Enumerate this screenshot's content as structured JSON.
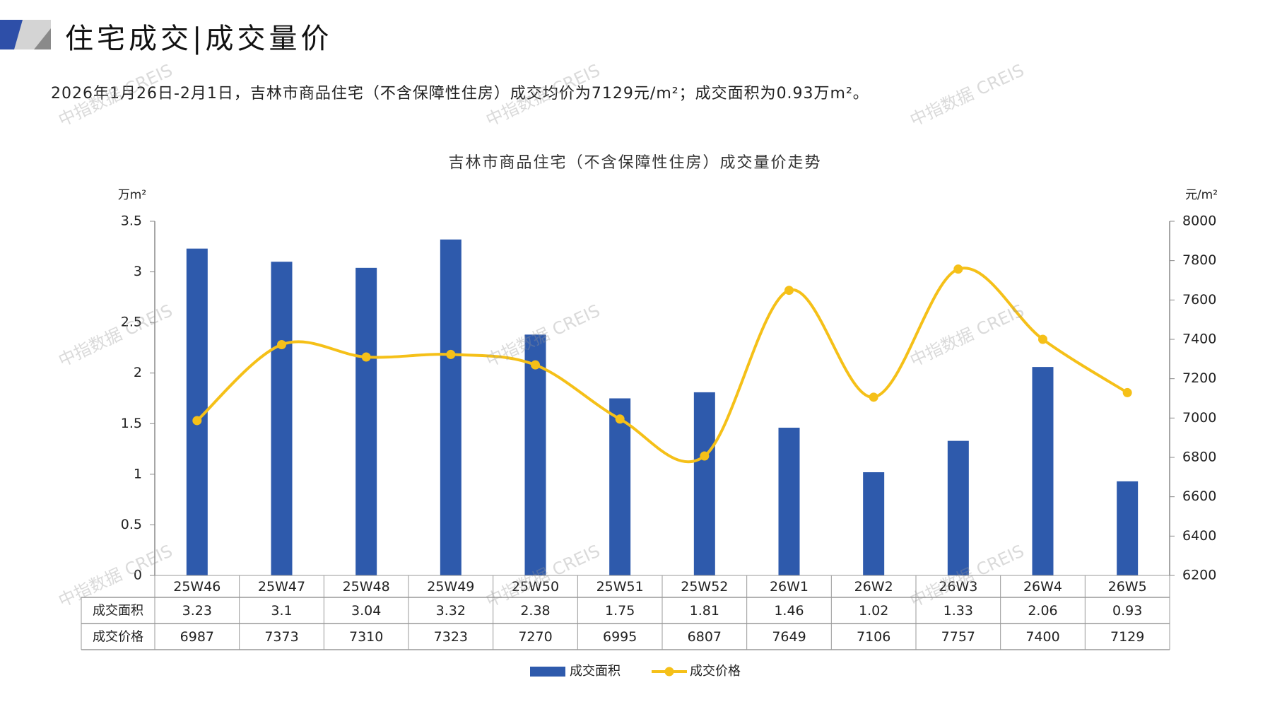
{
  "header": {
    "title": "住宅成交|成交量价"
  },
  "summary": "2026年1月26日-2月1日，吉林市商品住宅（不含保障性住房）成交均价为7129元/m²；成交面积为0.93万m²。",
  "watermark": "中指数据 CREIS",
  "colors": {
    "bar": "#2E5AAC",
    "line": "#F5C018",
    "accent": "#2E4FA8"
  },
  "chart_data": {
    "type": "bar+line",
    "title": "吉林市商品住宅（不含保障性住房）成交量价走势",
    "categories": [
      "25W46",
      "25W47",
      "25W48",
      "25W49",
      "25W50",
      "25W51",
      "25W52",
      "26W1",
      "26W2",
      "26W3",
      "26W4",
      "26W5"
    ],
    "y_left": {
      "unit": "万m²",
      "range": [
        0,
        3.5
      ],
      "ticks": [
        "0",
        "0.5",
        "1",
        "1.5",
        "2",
        "2.5",
        "3",
        "3.5"
      ]
    },
    "y_right": {
      "unit": "元/m²",
      "range": [
        6200,
        8000
      ],
      "ticks": [
        "6200",
        "6400",
        "6600",
        "6800",
        "7000",
        "7200",
        "7400",
        "7600",
        "7800",
        "8000"
      ]
    },
    "series": [
      {
        "name": "成交面积",
        "type": "bar",
        "axis": "left",
        "values": [
          3.23,
          3.1,
          3.04,
          3.32,
          2.38,
          1.75,
          1.81,
          1.46,
          1.02,
          1.33,
          2.06,
          0.93
        ]
      },
      {
        "name": "成交价格",
        "type": "line",
        "axis": "right",
        "smooth": true,
        "values": [
          6987,
          7373,
          7310,
          7323,
          7270,
          6995,
          6807,
          7649,
          7106,
          7757,
          7400,
          7129
        ]
      }
    ],
    "data_table": true,
    "grid": false,
    "legend": "bottom"
  }
}
